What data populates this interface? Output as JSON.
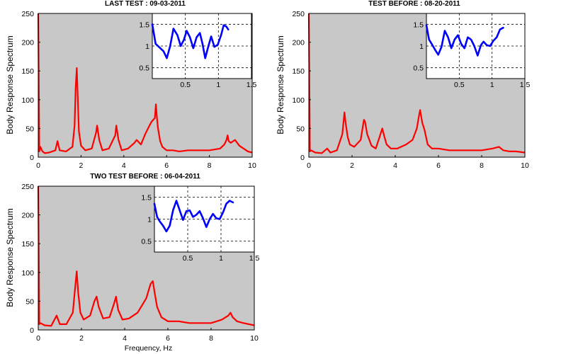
{
  "chart_data": [
    {
      "type": "line",
      "title": "LAST TEST : 09-03-2011",
      "xlabel": "",
      "ylabel": "Body Response Spectrum",
      "xlim": [
        0,
        10
      ],
      "ylim": [
        0,
        250
      ],
      "xticks": [
        "0",
        "2",
        "4",
        "6",
        "8",
        "10"
      ],
      "yticks": [
        "0",
        "50",
        "100",
        "150",
        "200",
        "250"
      ],
      "background": "#c8c8c8",
      "series": [
        {
          "color": "#ff0000",
          "x": [
            0.0,
            0.05,
            0.1,
            0.2,
            0.3,
            0.5,
            0.8,
            0.9,
            1.0,
            1.3,
            1.6,
            1.7,
            1.75,
            1.8,
            1.85,
            1.9,
            2.0,
            2.2,
            2.5,
            2.7,
            2.75,
            2.85,
            3.0,
            3.3,
            3.6,
            3.65,
            3.75,
            3.9,
            4.2,
            4.5,
            4.6,
            4.8,
            5.0,
            5.2,
            5.3,
            5.45,
            5.5,
            5.55,
            5.6,
            5.7,
            5.8,
            6.0,
            6.3,
            6.6,
            7.0,
            7.5,
            8.0,
            8.5,
            8.7,
            8.8,
            8.85,
            8.9,
            9.0,
            9.2,
            9.4,
            9.6,
            9.8,
            10.0
          ],
          "y": [
            250,
            10,
            18,
            10,
            7,
            8,
            12,
            28,
            12,
            10,
            18,
            55,
            120,
            155,
            100,
            45,
            20,
            12,
            15,
            42,
            55,
            30,
            12,
            15,
            38,
            55,
            30,
            12,
            15,
            25,
            30,
            22,
            40,
            55,
            62,
            68,
            92,
            68,
            50,
            28,
            18,
            12,
            12,
            10,
            12,
            12,
            12,
            15,
            22,
            30,
            38,
            28,
            25,
            30,
            20,
            15,
            10,
            8
          ]
        }
      ],
      "inset": {
        "xlim": [
          0,
          1.5
        ],
        "ylim": [
          0.25,
          1.75
        ],
        "xticks": [
          "0.5",
          "1",
          "1.5"
        ],
        "yticks": [
          "0.5",
          "1",
          "1.5"
        ],
        "color": "#0000ff",
        "x": [
          0.0,
          0.05,
          0.1,
          0.17,
          0.22,
          0.27,
          0.32,
          0.38,
          0.43,
          0.48,
          0.52,
          0.57,
          0.62,
          0.67,
          0.72,
          0.76,
          0.8,
          0.84,
          0.89,
          0.94,
          0.99,
          1.04,
          1.08,
          1.12,
          1.15
        ],
        "y": [
          1.5,
          1.05,
          0.98,
          0.88,
          0.72,
          1.0,
          1.4,
          1.25,
          1.0,
          1.15,
          1.35,
          1.2,
          0.95,
          1.2,
          1.3,
          1.05,
          0.72,
          0.95,
          1.22,
          0.98,
          1.03,
          1.25,
          1.48,
          1.45,
          1.38
        ]
      }
    },
    {
      "type": "line",
      "title": "TEST BEFORE : 08-20-2011",
      "xlabel": "",
      "ylabel": "Body Response Spectrum",
      "xlim": [
        0,
        10
      ],
      "ylim": [
        0,
        250
      ],
      "xticks": [
        "0",
        "2",
        "4",
        "6",
        "8",
        "10"
      ],
      "yticks": [
        "0",
        "50",
        "100",
        "150",
        "200",
        "250"
      ],
      "background": "#c8c8c8",
      "series": [
        {
          "color": "#ff0000",
          "x": [
            0.0,
            0.05,
            0.1,
            0.3,
            0.6,
            0.85,
            1.0,
            1.3,
            1.55,
            1.65,
            1.7,
            1.8,
            1.9,
            2.1,
            2.4,
            2.55,
            2.6,
            2.7,
            2.9,
            3.1,
            3.3,
            3.4,
            3.5,
            3.6,
            3.8,
            4.1,
            4.5,
            4.8,
            5.0,
            5.1,
            5.15,
            5.25,
            5.35,
            5.5,
            5.7,
            6.0,
            6.5,
            7.0,
            7.5,
            8.0,
            8.5,
            8.8,
            9.0,
            9.3,
            9.6,
            10.0
          ],
          "y": [
            250,
            10,
            12,
            8,
            7,
            15,
            8,
            12,
            40,
            78,
            60,
            35,
            22,
            18,
            30,
            65,
            62,
            40,
            20,
            15,
            38,
            50,
            35,
            22,
            15,
            15,
            22,
            30,
            50,
            72,
            82,
            60,
            48,
            22,
            15,
            15,
            12,
            12,
            12,
            12,
            15,
            18,
            12,
            10,
            10,
            8
          ]
        }
      ],
      "inset": {
        "xlim": [
          0,
          1.5
        ],
        "ylim": [
          0.25,
          1.75
        ],
        "xticks": [
          "0.5",
          "1",
          "1.5"
        ],
        "yticks": [
          "0.5",
          "1",
          "1.5"
        ],
        "color": "#0000ff",
        "x": [
          0.0,
          0.04,
          0.08,
          0.13,
          0.18,
          0.23,
          0.28,
          0.33,
          0.38,
          0.43,
          0.48,
          0.53,
          0.58,
          0.63,
          0.68,
          0.73,
          0.78,
          0.83,
          0.87,
          0.92,
          0.97,
          1.02,
          1.07,
          1.12,
          1.17
        ],
        "y": [
          1.48,
          1.15,
          1.05,
          0.92,
          0.8,
          0.98,
          1.35,
          1.2,
          0.95,
          1.15,
          1.25,
          1.05,
          0.95,
          1.2,
          1.15,
          1.0,
          0.78,
          1.02,
          1.1,
          1.02,
          1.0,
          1.12,
          1.2,
          1.38,
          1.42
        ]
      }
    },
    {
      "type": "line",
      "title": "TWO TEST BEFORE : 06-04-2011",
      "xlabel": "Frequency, Hz",
      "ylabel": "Body Response Spectrum",
      "xlim": [
        0,
        10
      ],
      "ylim": [
        0,
        250
      ],
      "xticks": [
        "0",
        "2",
        "4",
        "6",
        "8",
        "10"
      ],
      "yticks": [
        "0",
        "50",
        "100",
        "150",
        "200",
        "250"
      ],
      "background": "#c8c8c8",
      "series": [
        {
          "color": "#ff0000",
          "x": [
            0.0,
            0.05,
            0.1,
            0.3,
            0.6,
            0.85,
            1.0,
            1.3,
            1.6,
            1.7,
            1.78,
            1.85,
            1.95,
            2.1,
            2.4,
            2.6,
            2.7,
            2.8,
            3.0,
            3.3,
            3.5,
            3.6,
            3.7,
            3.9,
            4.2,
            4.6,
            5.0,
            5.2,
            5.3,
            5.4,
            5.5,
            5.7,
            6.0,
            6.5,
            7.0,
            7.5,
            8.0,
            8.5,
            8.8,
            8.9,
            9.0,
            9.2,
            9.5,
            10.0
          ],
          "y": [
            250,
            10,
            12,
            8,
            7,
            25,
            10,
            10,
            30,
            70,
            102,
            65,
            30,
            18,
            25,
            50,
            58,
            40,
            20,
            22,
            45,
            58,
            35,
            18,
            20,
            30,
            55,
            80,
            85,
            62,
            40,
            22,
            15,
            15,
            12,
            12,
            12,
            18,
            25,
            30,
            22,
            15,
            12,
            8
          ]
        }
      ],
      "inset": {
        "xlim": [
          0,
          1.5
        ],
        "ylim": [
          0.25,
          1.75
        ],
        "xticks": [
          "0.5",
          "1",
          "1.5"
        ],
        "yticks": [
          "0.5",
          "1",
          "1.5"
        ],
        "color": "#0000ff",
        "x": [
          0.0,
          0.04,
          0.08,
          0.13,
          0.18,
          0.23,
          0.28,
          0.33,
          0.38,
          0.43,
          0.48,
          0.53,
          0.58,
          0.63,
          0.68,
          0.73,
          0.78,
          0.83,
          0.88,
          0.93,
          0.98,
          1.03,
          1.08,
          1.13,
          1.18
        ],
        "y": [
          1.35,
          1.05,
          0.95,
          0.85,
          0.72,
          0.85,
          1.2,
          1.42,
          1.2,
          0.98,
          1.18,
          1.2,
          1.05,
          1.1,
          1.18,
          1.02,
          0.82,
          1.0,
          1.12,
          1.02,
          1.0,
          1.15,
          1.35,
          1.42,
          1.38
        ]
      }
    }
  ]
}
